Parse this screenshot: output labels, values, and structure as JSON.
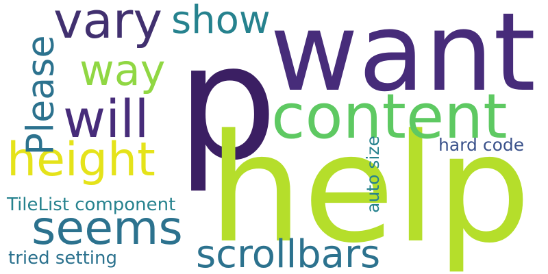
{
  "words": {
    "p": "p",
    "want": "want",
    "help": "help",
    "content": "content",
    "vary": "vary",
    "show": "show",
    "way": "way",
    "will": "will",
    "height": "height",
    "Please": "Please",
    "seems": "seems",
    "scrollbars": "scrollbars",
    "TileList component": "TileList component",
    "tried setting": "tried setting",
    "hard code": "hard code",
    "auto size": "auto size"
  },
  "colors": {
    "background": "#ffffff",
    "deep_purple": "#472c7a",
    "purple": "#3b1f63",
    "teal": "#2c728e",
    "teal_light": "#26828e",
    "green": "#5ec962",
    "lime": "#addc30",
    "lime_light": "#b5de2b",
    "yellow": "#e5e31a",
    "slate": "#3b528b",
    "ink": "#41306f"
  }
}
